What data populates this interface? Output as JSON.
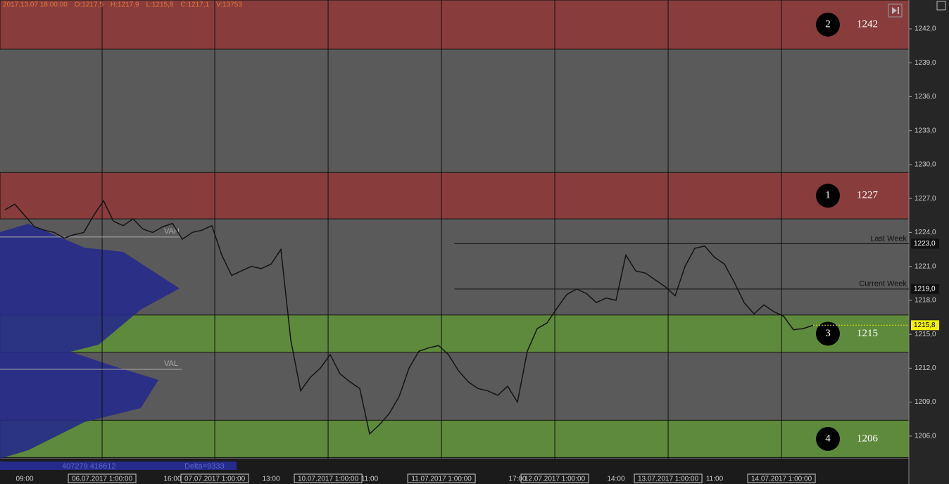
{
  "chart_data": {
    "type": "line",
    "header": [
      "2017.13.07 18:00:00",
      "O:1217,5",
      "H:1217,9",
      "L:1215,8",
      "C:1217,1",
      "V:13753"
    ],
    "categories": [
      null,
      null,
      "09:00",
      null,
      null,
      null,
      null,
      null,
      null,
      null,
      null,
      null,
      null,
      null,
      null,
      null,
      null,
      "16:00",
      null,
      null,
      null,
      null,
      null,
      null,
      null,
      null,
      null,
      "13:00",
      null,
      null,
      null,
      null,
      null,
      null,
      null,
      null,
      null,
      "11:00",
      null,
      null,
      null,
      null,
      null,
      null,
      null,
      null,
      null,
      null,
      null,
      null,
      null,
      null,
      "17:00",
      null,
      null,
      null,
      null,
      null,
      null,
      null,
      null,
      null,
      "14:00",
      null,
      null,
      null,
      null,
      null,
      null,
      null,
      null,
      null,
      "11:00",
      null,
      null,
      null,
      null,
      null,
      null,
      null,
      null,
      null,
      null
    ],
    "series": [
      {
        "color": "#141414",
        "values": [
          1226.0,
          1226.5,
          1225.5,
          1224.5,
          1224.2,
          1224.0,
          1223.5,
          1223.8,
          1224.0,
          1225.5,
          1226.8,
          1225.0,
          1224.6,
          1225.2,
          1224.3,
          1224.0,
          1224.5,
          1224.8,
          1223.4,
          1224.0,
          1224.2,
          1224.6,
          1222.0,
          1220.2,
          1220.6,
          1221.0,
          1220.8,
          1221.2,
          1222.5,
          1214.5,
          1210.0,
          1211.2,
          1212.0,
          1213.2,
          1211.5,
          1210.8,
          1210.2,
          1206.2,
          1207.0,
          1208.0,
          1209.5,
          1212.0,
          1213.5,
          1213.8,
          1214.0,
          1213.2,
          1211.8,
          1210.8,
          1210.2,
          1210.0,
          1209.6,
          1210.4,
          1209.0,
          1213.5,
          1215.5,
          1216.0,
          1217.3,
          1218.5,
          1219.0,
          1218.6,
          1217.8,
          1218.2,
          1218.0,
          1222.0,
          1220.6,
          1220.4,
          1219.8,
          1219.2,
          1218.4,
          1221.0,
          1222.6,
          1222.8,
          1221.8,
          1221.2,
          1219.6,
          1217.8,
          1216.8,
          1217.6,
          1217.0,
          1216.6,
          1215.4,
          1215.5,
          1215.8
        ]
      }
    ],
    "ylim": [
      1204,
      1244.55
    ],
    "yticks": [
      {
        "value": 1206,
        "label": "1206,0"
      },
      {
        "value": 1209,
        "label": "1209,0"
      },
      {
        "value": 1212,
        "label": "1212,0"
      },
      {
        "value": 1215,
        "label": "1215,0"
      },
      {
        "value": 1218,
        "label": "1218,0"
      },
      {
        "value": 1221,
        "label": "1221,0"
      },
      {
        "value": 1224,
        "label": "1224,0"
      },
      {
        "value": 1227,
        "label": "1227,0"
      },
      {
        "value": 1230,
        "label": "1230,0"
      },
      {
        "value": 1233,
        "label": "1233,0"
      },
      {
        "value": 1236,
        "label": "1236,0"
      },
      {
        "value": 1239,
        "label": "1239,0"
      },
      {
        "value": 1242,
        "label": "1242,0"
      }
    ],
    "day_breaks": [
      {
        "at": 9.86,
        "label": "06.07.2017 1:00:00"
      },
      {
        "at": 21.29,
        "label": "07.07.2017 1:00:00"
      },
      {
        "at": 32.79,
        "label": "10.07.2017 1:00:00"
      },
      {
        "at": 44.29,
        "label": "11.07.2017 1:00:00"
      },
      {
        "at": 55.79,
        "label": "12.07.2017 1:00:00"
      },
      {
        "at": 67.29,
        "label": "13.07.2017 1:00:00"
      },
      {
        "at": 78.79,
        "label": "14.07.2017 1:00:00"
      }
    ],
    "zones": [
      {
        "number": "2",
        "label": "1242",
        "low": 1240.2,
        "high": 1244.55,
        "color": "#893c3c"
      },
      {
        "number": "1",
        "label": "1227",
        "low": 1225.2,
        "high": 1229.3,
        "color": "#893c3c"
      },
      {
        "number": "3",
        "label": "1215",
        "low": 1213.4,
        "high": 1216.7,
        "color": "#5e8a3b"
      },
      {
        "number": "4",
        "label": "1206",
        "low": 1204.1,
        "high": 1207.4,
        "color": "#5e8a3b"
      }
    ],
    "levels": [
      {
        "name": "Last Week",
        "value": 1223.0,
        "value_label": "1223,0",
        "from": 45.6
      },
      {
        "name": "Current Week",
        "value": 1219.0,
        "value_label": "1219,0",
        "from": 45.6
      }
    ],
    "current_price": {
      "value": 1215.8,
      "label": "1215,8"
    },
    "profile_labels": [
      {
        "label": "VAH",
        "value": 1223.6
      },
      {
        "label": "VAL",
        "value": 1211.9
      }
    ],
    "footer": {
      "volumes": "407279 416612",
      "delta": "Delta=9333"
    }
  }
}
